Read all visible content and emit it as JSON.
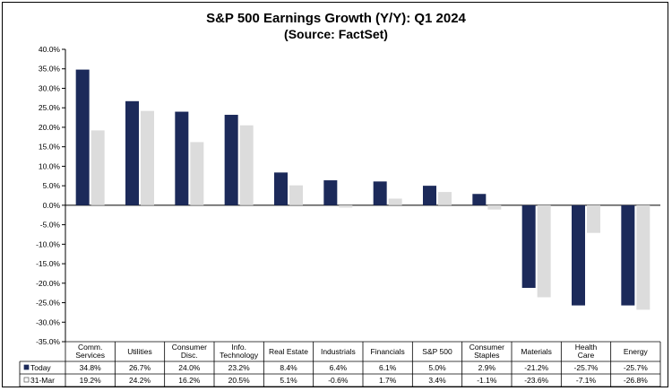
{
  "chart_data": {
    "type": "bar",
    "title": "S&P 500 Earnings Growth (Y/Y): Q1 2024",
    "subtitle": "(Source: FactSet)",
    "categories": [
      [
        "Comm.",
        "Services"
      ],
      [
        "Utilities"
      ],
      [
        "Consumer",
        "Disc."
      ],
      [
        "Info.",
        "Technology"
      ],
      [
        "Real Estate"
      ],
      [
        "Industrials"
      ],
      [
        "Financials"
      ],
      [
        "S&P 500"
      ],
      [
        "Consumer",
        "Staples"
      ],
      [
        "Materials"
      ],
      [
        "Health",
        "Care"
      ],
      [
        "Energy"
      ]
    ],
    "series": [
      {
        "name": "Today",
        "legend_symbol": "■",
        "color": "#1c2a5a",
        "values": [
          34.8,
          26.7,
          24.0,
          23.2,
          8.4,
          6.4,
          6.1,
          5.0,
          2.9,
          -21.2,
          -25.7,
          -25.7
        ],
        "labels": [
          "34.8%",
          "26.7%",
          "24.0%",
          "23.2%",
          "8.4%",
          "6.4%",
          "6.1%",
          "5.0%",
          "2.9%",
          "-21.2%",
          "-25.7%",
          "-25.7%"
        ]
      },
      {
        "name": "31-Mar",
        "legend_symbol": "□",
        "color": "#dcdcdc",
        "values": [
          19.2,
          24.2,
          16.2,
          20.5,
          5.1,
          -0.6,
          1.7,
          3.4,
          -1.1,
          -23.6,
          -7.1,
          -26.8
        ],
        "labels": [
          "19.2%",
          "24.2%",
          "16.2%",
          "20.5%",
          "5.1%",
          "-0.6%",
          "1.7%",
          "3.4%",
          "-1.1%",
          "-23.6%",
          "-7.1%",
          "-26.8%"
        ]
      }
    ],
    "ylim": [
      -35,
      40
    ],
    "yticks": [
      40,
      35,
      30,
      25,
      20,
      15,
      10,
      5,
      0,
      -5,
      -10,
      -15,
      -20,
      -25,
      -30,
      -35
    ],
    "ytick_labels": [
      "40.0%",
      "35.0%",
      "30.0%",
      "25.0%",
      "20.0%",
      "15.0%",
      "10.0%",
      "5.0%",
      "0.0%",
      "-5.0%",
      "-10.0%",
      "-15.0%",
      "-20.0%",
      "-25.0%",
      "-30.0%",
      "-35.0%"
    ],
    "grid": false,
    "legend": "data-table"
  }
}
